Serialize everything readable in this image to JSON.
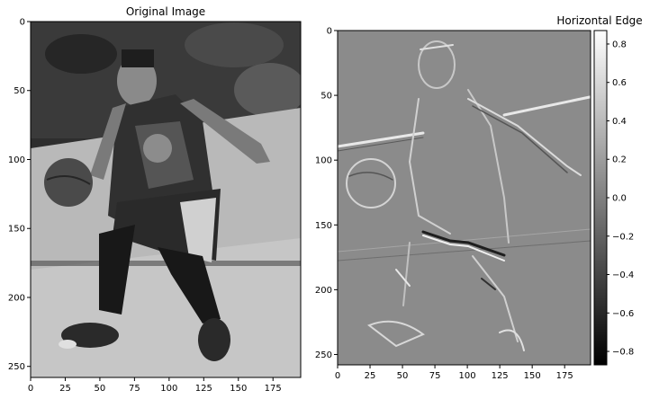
{
  "chart_data": [
    {
      "type": "image",
      "title": "Original Image",
      "colormap": "gray",
      "xlim": [
        0,
        195
      ],
      "ylim": [
        0,
        258
      ],
      "y_inverted": true,
      "x_ticks": [
        "0",
        "25",
        "50",
        "75",
        "100",
        "125",
        "150",
        "175"
      ],
      "x_tick_values": [
        0,
        25,
        50,
        75,
        100,
        125,
        150,
        175
      ],
      "y_ticks": [
        "0",
        "50",
        "100",
        "150",
        "200",
        "250"
      ],
      "y_tick_values": [
        0,
        50,
        100,
        150,
        200,
        250
      ]
    },
    {
      "type": "image",
      "title": "Horizontal Edge",
      "colormap": "gray",
      "xlim": [
        0,
        195
      ],
      "ylim": [
        0,
        258
      ],
      "y_inverted": true,
      "x_ticks": [
        "0",
        "25",
        "50",
        "75",
        "100",
        "125",
        "150",
        "175"
      ],
      "x_tick_values": [
        0,
        25,
        50,
        75,
        100,
        125,
        150,
        175
      ],
      "y_ticks": [
        "0",
        "50",
        "100",
        "150",
        "200",
        "250"
      ],
      "y_tick_values": [
        0,
        50,
        100,
        150,
        200,
        250
      ],
      "colorbar": {
        "range": [
          -0.87,
          0.87
        ],
        "ticks": [
          "0.8",
          "0.6",
          "0.4",
          "0.2",
          "0.0",
          "−0.2",
          "−0.4",
          "−0.6",
          "−0.8"
        ],
        "tick_values": [
          0.8,
          0.6,
          0.4,
          0.2,
          0.0,
          -0.2,
          -0.4,
          -0.6,
          -0.8
        ]
      }
    }
  ]
}
